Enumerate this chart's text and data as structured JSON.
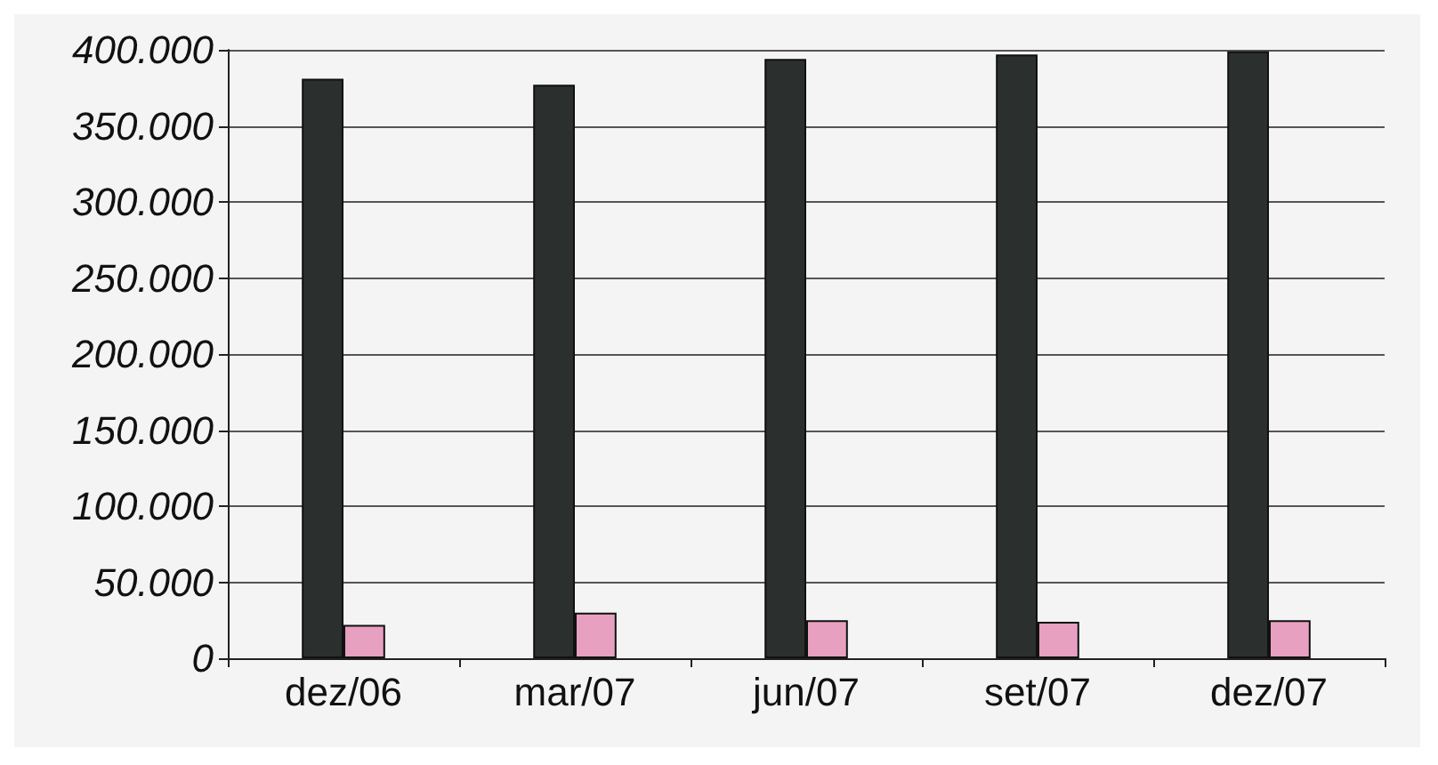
{
  "chart_data": {
    "type": "bar",
    "categories": [
      "dez/06",
      "mar/07",
      "jun/07",
      "set/07",
      "dez/07"
    ],
    "series": [
      {
        "color": "#2b2f2e",
        "values": [
          381000,
          377000,
          394000,
          397000,
          399000
        ]
      },
      {
        "color": "#e8a0c0",
        "values": [
          22000,
          30000,
          25000,
          24000,
          25000
        ]
      }
    ],
    "ylim": [
      0,
      400000
    ],
    "yticks": [
      {
        "value": 0,
        "label": "0"
      },
      {
        "value": 50000,
        "label": "50.000"
      },
      {
        "value": 100000,
        "label": "100.000"
      },
      {
        "value": 150000,
        "label": "150.000"
      },
      {
        "value": 200000,
        "label": "200.000"
      },
      {
        "value": 250000,
        "label": "250.000"
      },
      {
        "value": 300000,
        "label": "300.000"
      },
      {
        "value": 350000,
        "label": "350.000"
      },
      {
        "value": 400000,
        "label": "400.000"
      }
    ],
    "grid": "y"
  }
}
